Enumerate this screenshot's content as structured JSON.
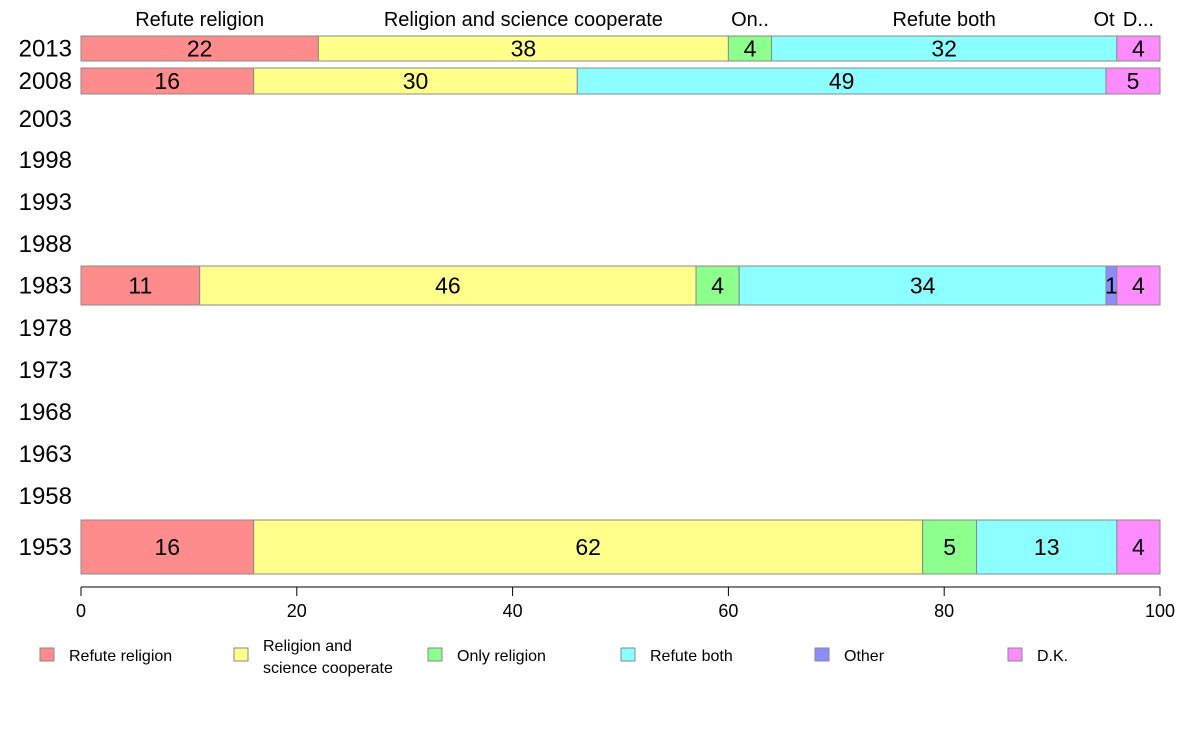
{
  "chart_data": {
    "type": "bar",
    "orientation": "horizontal",
    "stacked": true,
    "categories": [
      "2013",
      "2008",
      "2003",
      "1998",
      "1993",
      "1988",
      "1983",
      "1978",
      "1973",
      "1968",
      "1963",
      "1958",
      "1953"
    ],
    "xlim": [
      0,
      100
    ],
    "xticks": [
      "0",
      "20",
      "40",
      "60",
      "80",
      "100"
    ],
    "series": [
      {
        "name": "Refute religion",
        "color": "#FF8C8C",
        "values": [
          22,
          16,
          null,
          null,
          null,
          null,
          11,
          null,
          null,
          null,
          null,
          null,
          16
        ]
      },
      {
        "name": "Religion and science cooperate",
        "color": "#FFFF8C",
        "values": [
          38,
          30,
          null,
          null,
          null,
          null,
          46,
          null,
          null,
          null,
          null,
          null,
          62
        ]
      },
      {
        "name": "Only religion",
        "color": "#8CFF8C",
        "values": [
          4,
          0,
          null,
          null,
          null,
          null,
          4,
          null,
          null,
          null,
          null,
          null,
          5
        ]
      },
      {
        "name": "Refute both",
        "color": "#8CFFFF",
        "values": [
          32,
          49,
          null,
          null,
          null,
          null,
          34,
          null,
          null,
          null,
          null,
          null,
          13
        ]
      },
      {
        "name": "Other",
        "color": "#8C8CFF",
        "values": [
          0,
          0,
          null,
          null,
          null,
          null,
          1,
          null,
          null,
          null,
          null,
          null,
          0
        ]
      },
      {
        "name": "D.K.",
        "color": "#FF8CFF",
        "values": [
          4,
          5,
          null,
          null,
          null,
          null,
          4,
          null,
          null,
          null,
          null,
          null,
          4
        ]
      }
    ],
    "top_labels": [
      "Refute religion",
      "Religion and science cooperate",
      "On..",
      "Refute both",
      "Ot",
      "D..."
    ],
    "legend_position": "bottom",
    "legend": [
      {
        "lines": [
          "Refute religion"
        ],
        "color": "#FF8C8C"
      },
      {
        "lines": [
          "Religion and",
          "science cooperate"
        ],
        "color": "#FFFF8C"
      },
      {
        "lines": [
          "Only religion"
        ],
        "color": "#8CFF8C"
      },
      {
        "lines": [
          "Refute both"
        ],
        "color": "#8CFFFF"
      },
      {
        "lines": [
          "Other"
        ],
        "color": "#8C8CFF"
      },
      {
        "lines": [
          "D.K."
        ],
        "color": "#FF8CFF"
      }
    ]
  }
}
